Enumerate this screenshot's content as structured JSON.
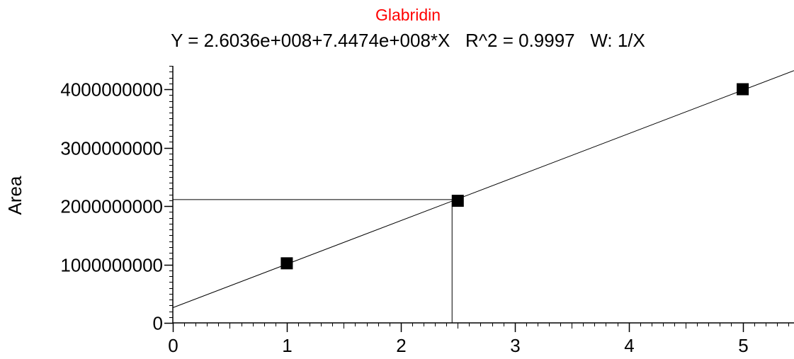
{
  "chart_data": {
    "type": "scatter",
    "title": "Glabridin",
    "subtitle": "Y = 2.6036e+008+7.4474e+008*X   R^2 = 0.9997   W: 1/X",
    "xlabel": "",
    "ylabel": "Area",
    "xlim": [
      0,
      5.45
    ],
    "ylim": [
      0,
      4400000000
    ],
    "x_ticks": [
      0,
      1,
      2,
      3,
      4,
      5
    ],
    "x_tick_labels": [
      "0",
      "1",
      "2",
      "3",
      "4",
      "5"
    ],
    "y_ticks": [
      0,
      1000000000,
      2000000000,
      3000000000,
      4000000000
    ],
    "y_tick_labels": [
      "0",
      "1000000000",
      "2000000000",
      "3000000000",
      "4000000000"
    ],
    "x_minor_step": 0.1,
    "y_minor_step": 100000000,
    "points": [
      {
        "x": 1.0,
        "y": 1020000000
      },
      {
        "x": 2.5,
        "y": 2090000000
      },
      {
        "x": 5.0,
        "y": 4000000000
      }
    ],
    "fit": {
      "intercept": 260360000,
      "slope": 744740000
    },
    "crosshair": {
      "x": 2.45,
      "y": 2110000000
    },
    "grid": false,
    "colors": {
      "title": "#ff0000",
      "text": "#000000",
      "marker": "#000000"
    }
  }
}
